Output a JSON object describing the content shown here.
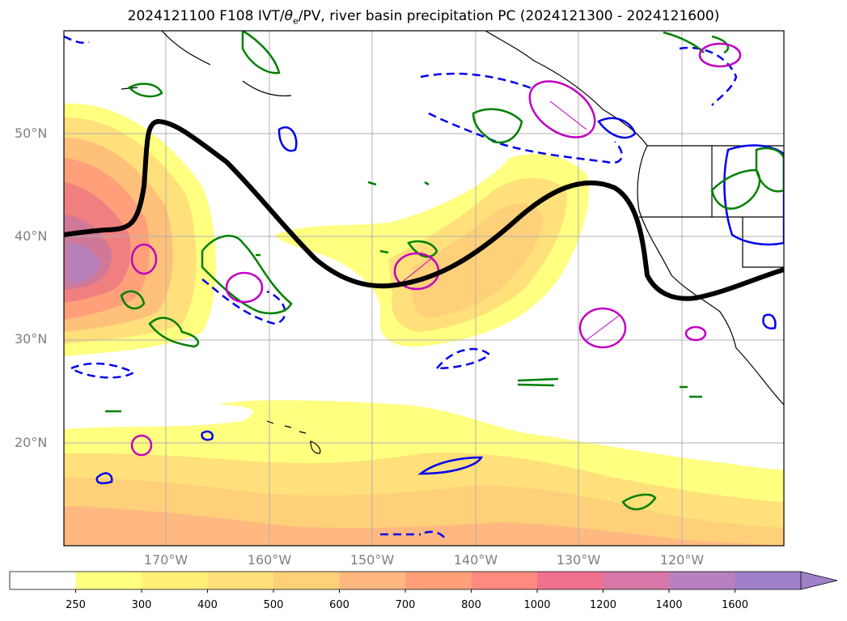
{
  "title": "2024121100 F108 IVT/θe/PV, river basin precipitation PC (2024121300 - 2024121600)",
  "title_parts": {
    "prefix": "2024121100 F108 IVT/",
    "theta": "θ",
    "sub": "e",
    "suffix": "/PV, river basin precipitation PC (2024121300 - 2024121600)"
  },
  "lat_labels": [
    "50°N",
    "40°N",
    "30°N",
    "20°N"
  ],
  "lon_labels": [
    "170°W",
    "160°W",
    "150°W",
    "140°W",
    "130°W",
    "120°W"
  ],
  "colorbar": {
    "levels": [
      "250",
      "300",
      "400",
      "500",
      "600",
      "700",
      "800",
      "1000",
      "1200",
      "1400",
      "1600"
    ],
    "colors": [
      "#ffffff",
      "#ffff80",
      "#fff07a",
      "#ffe07a",
      "#ffd07a",
      "#ffb880",
      "#ffa07a",
      "#ff8a80",
      "#f07090",
      "#d878a8",
      "#b880c0",
      "#a080c8"
    ]
  },
  "colors": {
    "jet": "#000000",
    "pv_contour": "#0000ee",
    "theta_contour": "#008000",
    "precip_pc": "#c000c0",
    "coast": "#000000",
    "grid": "#b0b0b0"
  },
  "legend_semantics": {
    "ivt_units_shown_on_colorbar": true
  }
}
